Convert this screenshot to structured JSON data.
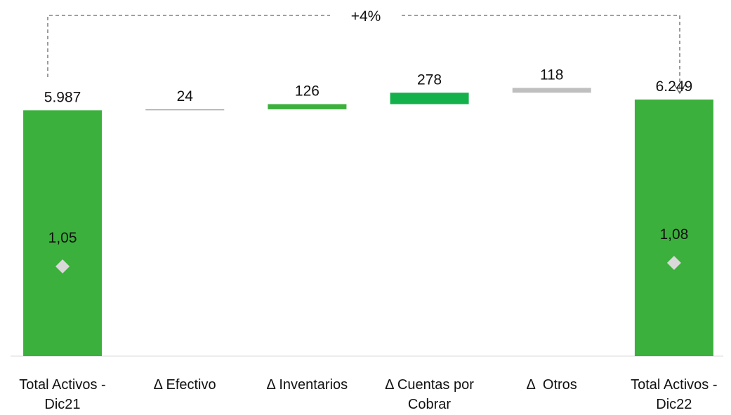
{
  "chart_data": {
    "type": "waterfall",
    "categories": [
      "Total Activos - Dic21",
      "Δ Efectivo",
      "Δ Inventarios",
      "Δ Cuentas por Cobrar",
      "Δ  Otros",
      "Total Activos - Dic22"
    ],
    "values": [
      5987,
      24,
      126,
      278,
      118,
      6249
    ],
    "value_labels": [
      "5.987",
      "24",
      "126",
      "278",
      "118",
      "6.249"
    ],
    "kinds": [
      "total",
      "delta",
      "delta",
      "delta",
      "delta",
      "total"
    ],
    "colors": [
      "#3cb03c",
      "#a6a6a6",
      "#3cb03c",
      "#14b04c",
      "#bfbfbf",
      "#3cb03c"
    ],
    "ylim": [
      0,
      7000
    ],
    "ratios": {
      "values": [
        1.05,
        null,
        null,
        null,
        null,
        1.08
      ],
      "value_labels": [
        "1,05",
        null,
        null,
        null,
        null,
        "1,08"
      ],
      "axis": "y2",
      "color": "#d9d9d9",
      "marker": "diamond"
    },
    "y2lim": [
      0.283,
      2.74
    ],
    "annotation": "+4%"
  }
}
